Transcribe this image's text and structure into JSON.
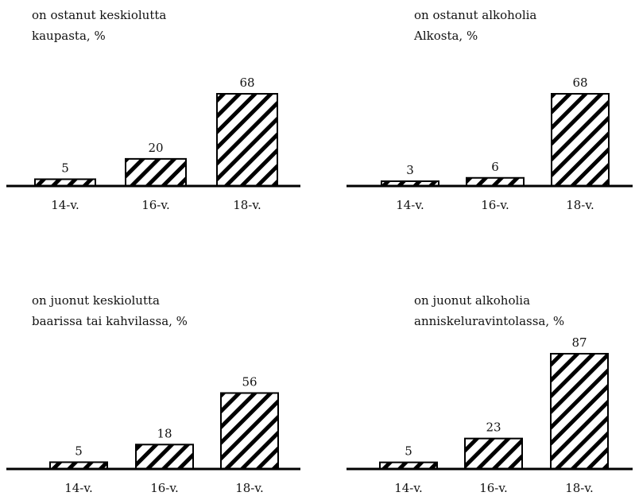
{
  "chart_data": [
    {
      "type": "bar",
      "title_lines": [
        "on ostanut keskiolutta",
        "kaupasta, %"
      ],
      "categories": [
        "14-v.",
        "16-v.",
        "18-v."
      ],
      "values": [
        5,
        20,
        68
      ],
      "value_labels": [
        "5",
        "20",
        "68"
      ],
      "ylim": [
        0,
        68
      ],
      "hatch": "diagonal",
      "colors": {
        "bar_fill": "#ffffff",
        "hatch": "#000000",
        "axis": "#000000"
      }
    },
    {
      "type": "bar",
      "title_lines": [
        "on ostanut alkoholia",
        "Alkosta, %"
      ],
      "categories": [
        "14-v.",
        "16-v.",
        "18-v."
      ],
      "values": [
        3,
        6,
        68
      ],
      "value_labels": [
        "3",
        "6",
        "68"
      ],
      "ylim": [
        0,
        68
      ],
      "hatch": "diagonal",
      "colors": {
        "bar_fill": "#ffffff",
        "hatch": "#000000",
        "axis": "#000000"
      }
    },
    {
      "type": "bar",
      "title_lines": [
        "on juonut keskiolutta",
        "baarissa tai kahvilassa, %"
      ],
      "categories": [
        "14-v.",
        "16-v.",
        "18-v."
      ],
      "values": [
        5,
        18,
        56
      ],
      "value_labels": [
        "5",
        "18",
        "56"
      ],
      "ylim": [
        0,
        68
      ],
      "hatch": "diagonal",
      "colors": {
        "bar_fill": "#ffffff",
        "hatch": "#000000",
        "axis": "#000000"
      }
    },
    {
      "type": "bar",
      "title_lines": [
        "on juonut alkoholia",
        "anniskeluravintolassa, %"
      ],
      "categories": [
        "14-v.",
        "16-v.",
        "18-v."
      ],
      "values": [
        5,
        23,
        87
      ],
      "value_labels": [
        "5",
        "23",
        "87"
      ],
      "ylim": [
        0,
        87
      ],
      "hatch": "diagonal",
      "colors": {
        "bar_fill": "#ffffff",
        "hatch": "#000000",
        "axis": "#000000"
      }
    }
  ]
}
